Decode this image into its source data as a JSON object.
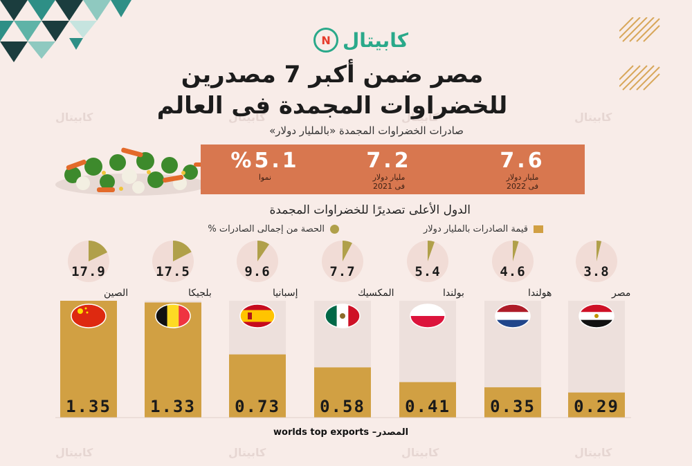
{
  "brand": {
    "logo_text": "كابيتال",
    "logo_badge": "N"
  },
  "watermark": "كابيتال",
  "title_line1": "مصر ضمن أكبر 7 مصدرين",
  "title_line2": "للخضراوات المجمدة فى العالم",
  "subtitle": "صادرات الخضراوات المجمدة «بالمليار دولار»",
  "banner": {
    "stats": [
      {
        "value": "7.6",
        "label1": "مليار دولار",
        "label2": "فى 2022"
      },
      {
        "value": "7.2",
        "label1": "مليار دولار",
        "label2": "فى 2021"
      },
      {
        "value": "%5.1",
        "label1": "نموا",
        "label2": ""
      }
    ]
  },
  "section_title": "الدول الأعلى تصديرًا للخضراوات المجمدة",
  "legend": {
    "bars": "قيمة الصادرات بالمليار دولار",
    "share": "الحصة من إجمالى الصادرات %"
  },
  "source": "المصدر– worlds top exports",
  "colors": {
    "bar": "#d1a043",
    "bar_bg": "#ede0dc",
    "pie_bg": "#f1dcd6",
    "pie_fill": "#b0a04a",
    "banner": "#d8774f",
    "brand": "#2aa98a"
  },
  "chart_data": {
    "type": "bar",
    "title": "الدول الأعلى تصديرًا للخضراوات المجمدة",
    "categories": [
      "الصين",
      "بلجيكا",
      "إسبانيا",
      "المكسيك",
      "بولندا",
      "هولندا",
      "مصر"
    ],
    "flags": [
      "china",
      "belgium",
      "spain",
      "mexico",
      "poland",
      "netherlands",
      "egypt"
    ],
    "series": [
      {
        "name": "قيمة الصادرات بالمليار دولار",
        "values": [
          1.35,
          1.33,
          0.73,
          0.58,
          0.41,
          0.35,
          0.29
        ]
      },
      {
        "name": "الحصة من إجمالى الصادرات %",
        "values": [
          17.9,
          17.5,
          9.6,
          7.7,
          5.4,
          4.6,
          3.8
        ]
      }
    ],
    "ylim": [
      0,
      1.35
    ],
    "value_labels": [
      "1.35",
      "1.33",
      "0.73",
      "0.58",
      "0.41",
      "0.35",
      "0.29"
    ],
    "share_labels": [
      "17.9",
      "17.5",
      "9.6",
      "7.7",
      "5.4",
      "4.6",
      "3.8"
    ]
  }
}
